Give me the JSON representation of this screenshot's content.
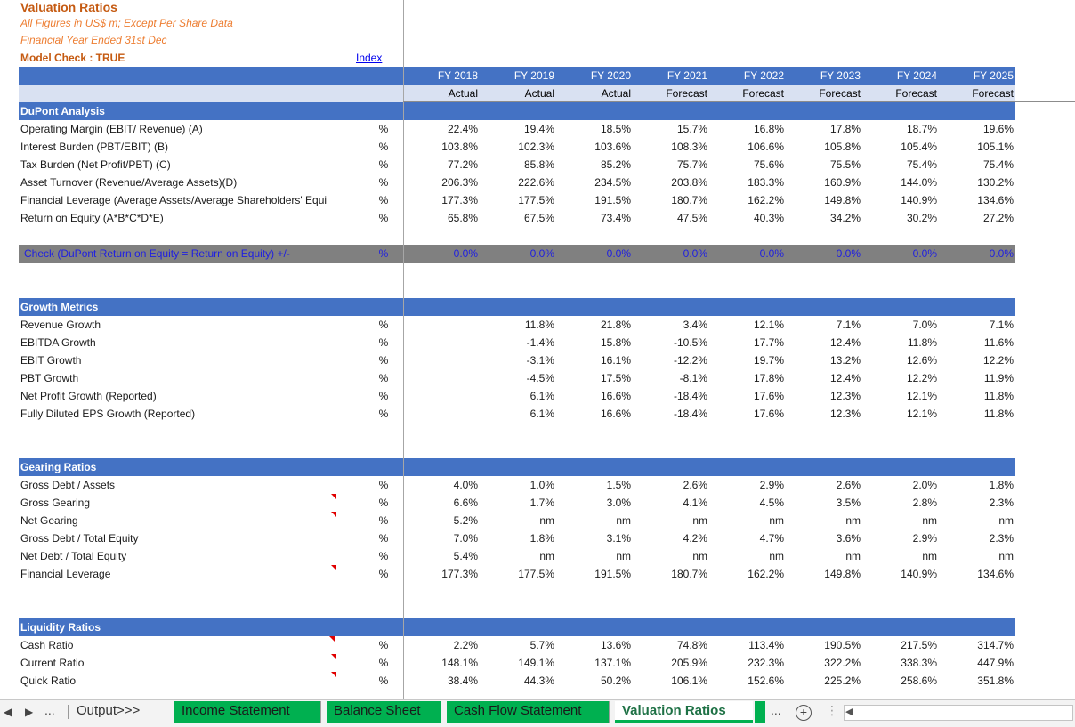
{
  "header": {
    "title": "Valuation Ratios",
    "subtitle1": "All Figures in US$ m; Except Per Share Data",
    "subtitle2": "Financial Year Ended 31st Dec",
    "model_check": "Model Check : TRUE",
    "index_link": "Index"
  },
  "years": [
    "FY 2018",
    "FY 2019",
    "FY 2020",
    "FY 2021",
    "FY 2022",
    "FY 2023",
    "FY 2024",
    "FY 2025"
  ],
  "statuses": [
    "Actual",
    "Actual",
    "Actual",
    "Forecast",
    "Forecast",
    "Forecast",
    "Forecast",
    "Forecast"
  ],
  "dupont": {
    "title": "DuPont Analysis",
    "rows": [
      {
        "label": "Operating Margin (EBIT/ Revenue) (A)",
        "unit": "%",
        "values": [
          "22.4%",
          "19.4%",
          "18.5%",
          "15.7%",
          "16.8%",
          "17.8%",
          "18.7%",
          "19.6%"
        ]
      },
      {
        "label": "Interest Burden (PBT/EBIT) (B)",
        "unit": "%",
        "values": [
          "103.8%",
          "102.3%",
          "103.6%",
          "108.3%",
          "106.6%",
          "105.8%",
          "105.4%",
          "105.1%"
        ]
      },
      {
        "label": "Tax Burden (Net Profit/PBT) (C)",
        "unit": "%",
        "values": [
          "77.2%",
          "85.8%",
          "85.2%",
          "75.7%",
          "75.6%",
          "75.5%",
          "75.4%",
          "75.4%"
        ]
      },
      {
        "label": "Asset Turnover (Revenue/Average Assets)(D)",
        "unit": "%",
        "values": [
          "206.3%",
          "222.6%",
          "234.5%",
          "203.8%",
          "183.3%",
          "160.9%",
          "144.0%",
          "130.2%"
        ]
      },
      {
        "label": "Financial Leverage (Average Assets/Average Shareholders' Equi",
        "unit": "%",
        "values": [
          "177.3%",
          "177.5%",
          "191.5%",
          "180.7%",
          "162.2%",
          "149.8%",
          "140.9%",
          "134.6%"
        ]
      },
      {
        "label": "Return on Equity (A*B*C*D*E)",
        "unit": "%",
        "values": [
          "65.8%",
          "67.5%",
          "73.4%",
          "47.5%",
          "40.3%",
          "34.2%",
          "30.2%",
          "27.2%"
        ]
      }
    ]
  },
  "check": {
    "label": "Check (DuPont Return on Equity = Return on Equity) +/-",
    "unit": "%",
    "values": [
      "0.0%",
      "0.0%",
      "0.0%",
      "0.0%",
      "0.0%",
      "0.0%",
      "0.0%",
      "0.0%"
    ]
  },
  "growth": {
    "title": "Growth Metrics",
    "rows": [
      {
        "label": "Revenue Growth",
        "unit": "%",
        "values": [
          "",
          "11.8%",
          "21.8%",
          "3.4%",
          "12.1%",
          "7.1%",
          "7.0%",
          "7.1%"
        ]
      },
      {
        "label": "EBITDA Growth",
        "unit": "%",
        "values": [
          "",
          "-1.4%",
          "15.8%",
          "-10.5%",
          "17.7%",
          "12.4%",
          "11.8%",
          "11.6%"
        ]
      },
      {
        "label": "EBIT Growth",
        "unit": "%",
        "values": [
          "",
          "-3.1%",
          "16.1%",
          "-12.2%",
          "19.7%",
          "13.2%",
          "12.6%",
          "12.2%"
        ]
      },
      {
        "label": "PBT Growth",
        "unit": "%",
        "values": [
          "",
          "-4.5%",
          "17.5%",
          "-8.1%",
          "17.8%",
          "12.4%",
          "12.2%",
          "11.9%"
        ]
      },
      {
        "label": "Net Profit Growth (Reported)",
        "unit": "%",
        "values": [
          "",
          "6.1%",
          "16.6%",
          "-18.4%",
          "17.6%",
          "12.3%",
          "12.1%",
          "11.8%"
        ]
      },
      {
        "label": "Fully Diluted EPS Growth (Reported)",
        "unit": "%",
        "values": [
          "",
          "6.1%",
          "16.6%",
          "-18.4%",
          "17.6%",
          "12.3%",
          "12.1%",
          "11.8%"
        ]
      }
    ]
  },
  "gearing": {
    "title": "Gearing Ratios",
    "rows": [
      {
        "label": "Gross Debt / Assets",
        "unit": "%",
        "values": [
          "4.0%",
          "1.0%",
          "1.5%",
          "2.6%",
          "2.9%",
          "2.6%",
          "2.0%",
          "1.8%"
        ]
      },
      {
        "label": "Gross Gearing",
        "unit": "%",
        "values": [
          "6.6%",
          "1.7%",
          "3.0%",
          "4.1%",
          "4.5%",
          "3.5%",
          "2.8%",
          "2.3%"
        ]
      },
      {
        "label": "Net Gearing",
        "unit": "%",
        "values": [
          "5.2%",
          "nm",
          "nm",
          "nm",
          "nm",
          "nm",
          "nm",
          "nm"
        ]
      },
      {
        "label": "Gross Debt / Total Equity",
        "unit": "%",
        "values": [
          "7.0%",
          "1.8%",
          "3.1%",
          "4.2%",
          "4.7%",
          "3.6%",
          "2.9%",
          "2.3%"
        ]
      },
      {
        "label": "Net Debt / Total Equity",
        "unit": "%",
        "values": [
          "5.4%",
          "nm",
          "nm",
          "nm",
          "nm",
          "nm",
          "nm",
          "nm"
        ]
      },
      {
        "label": "Financial Leverage",
        "unit": "%",
        "values": [
          "177.3%",
          "177.5%",
          "191.5%",
          "180.7%",
          "162.2%",
          "149.8%",
          "140.9%",
          "134.6%"
        ]
      }
    ]
  },
  "liquidity": {
    "title": "Liquidity Ratios",
    "rows": [
      {
        "label": "Cash Ratio",
        "unit": "%",
        "values": [
          "2.2%",
          "5.7%",
          "13.6%",
          "74.8%",
          "113.4%",
          "190.5%",
          "217.5%",
          "314.7%"
        ]
      },
      {
        "label": "Current Ratio",
        "unit": "%",
        "values": [
          "148.1%",
          "149.1%",
          "137.1%",
          "205.9%",
          "232.3%",
          "322.2%",
          "338.3%",
          "447.9%"
        ]
      },
      {
        "label": "Quick Ratio",
        "unit": "%",
        "values": [
          "38.4%",
          "44.3%",
          "50.2%",
          "106.1%",
          "152.6%",
          "225.2%",
          "258.6%",
          "351.8%"
        ]
      }
    ]
  },
  "tabs": {
    "items": [
      {
        "label": "Output>>>",
        "style": "plain"
      },
      {
        "label": "Income Statement",
        "style": "green"
      },
      {
        "label": "Balance Sheet",
        "style": "green"
      },
      {
        "label": "Cash Flow Statement",
        "style": "green"
      },
      {
        "label": "Valuation Ratios",
        "style": "active"
      }
    ],
    "more": "...",
    "add": "+"
  },
  "colors": {
    "band": "#4472c4",
    "light_band": "#d9e1f2",
    "gray_band": "#808080",
    "accent": "#c55a11",
    "tab_green": "#00b050"
  }
}
